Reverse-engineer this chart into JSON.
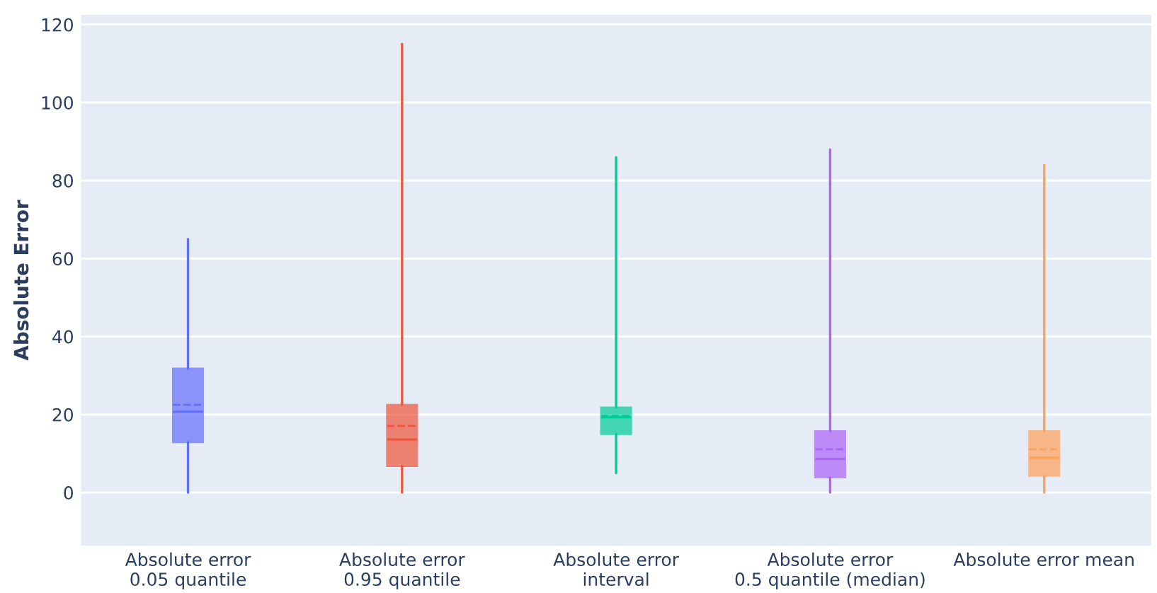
{
  "chart_data": {
    "type": "box",
    "ylabel": "Absolute Error",
    "categories": [
      "Absolute error\n0.05 quantile",
      "Absolute error\n0.95 quantile",
      "Absolute error\ninterval",
      "Absolute error\n0.5 quantile (median)",
      "Absolute error mean"
    ],
    "colors": [
      "#636efa",
      "#ef553b",
      "#00cc96",
      "#ab63fa",
      "#ffa15a"
    ],
    "boxes": [
      {
        "low": 0,
        "q1": 12.9,
        "median": 20.7,
        "q3": 31.8,
        "high": 65,
        "mean": 22.5
      },
      {
        "low": 0,
        "q1": 6.8,
        "median": 13.6,
        "q3": 22.5,
        "high": 115,
        "mean": 17.1
      },
      {
        "low": 5,
        "q1": 15,
        "median": 19.3,
        "q3": 21.8,
        "high": 86,
        "mean": 19.6
      },
      {
        "low": 0,
        "q1": 3.9,
        "median": 8.6,
        "q3": 15.7,
        "high": 88,
        "mean": 11.1
      },
      {
        "low": 0,
        "q1": 4.3,
        "median": 8.9,
        "q3": 15.7,
        "high": 84,
        "mean": 11.1
      }
    ],
    "ylim": [
      -13.6,
      122.5
    ],
    "yticks": [
      0,
      20,
      40,
      60,
      80,
      100,
      120
    ],
    "grid": "y"
  }
}
